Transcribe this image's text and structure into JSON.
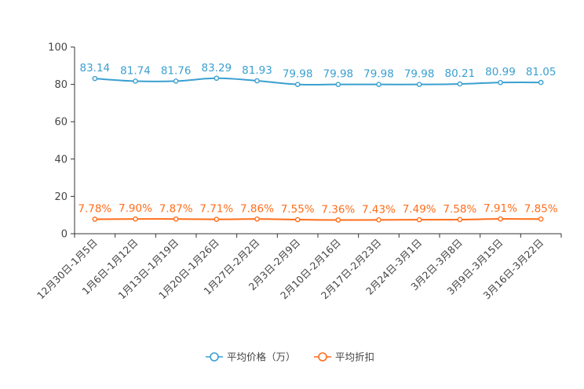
{
  "chart_data": {
    "type": "line",
    "categories": [
      "12月30日-1月5日",
      "1月6日-1月12日",
      "1月13日-1月19日",
      "1月20日-1月26日",
      "1月27日-2月2日",
      "2月3日-2月9日",
      "2月10日-2月16日",
      "2月17日-2月23日",
      "2月24日-3月1日",
      "3月2日-3月8日",
      "3月9日-3月15日",
      "3月16日-3月22日"
    ],
    "ylim": [
      0,
      100
    ],
    "yticks": [
      0,
      20,
      40,
      60,
      80,
      100
    ],
    "series": [
      {
        "name": "平均价格（万）",
        "color": "#3aa0d0",
        "values": [
          83.14,
          81.74,
          81.76,
          83.29,
          81.93,
          79.98,
          79.98,
          79.98,
          79.98,
          80.21,
          80.99,
          81.05
        ],
        "labels": [
          "83.14",
          "81.74",
          "81.76",
          "83.29",
          "81.93",
          "79.98",
          "79.98",
          "79.98",
          "79.98",
          "80.21",
          "80.99",
          "81.05"
        ]
      },
      {
        "name": "平均折扣",
        "color": "#ff6d1a",
        "values": [
          7.78,
          7.9,
          7.87,
          7.71,
          7.86,
          7.55,
          7.36,
          7.43,
          7.49,
          7.58,
          7.91,
          7.85
        ],
        "labels": [
          "7.78%",
          "7.90%",
          "7.87%",
          "7.71%",
          "7.86%",
          "7.55%",
          "7.36%",
          "7.43%",
          "7.49%",
          "7.58%",
          "7.91%",
          "7.85%"
        ]
      }
    ],
    "legend": "bottom-center",
    "grid": false
  }
}
